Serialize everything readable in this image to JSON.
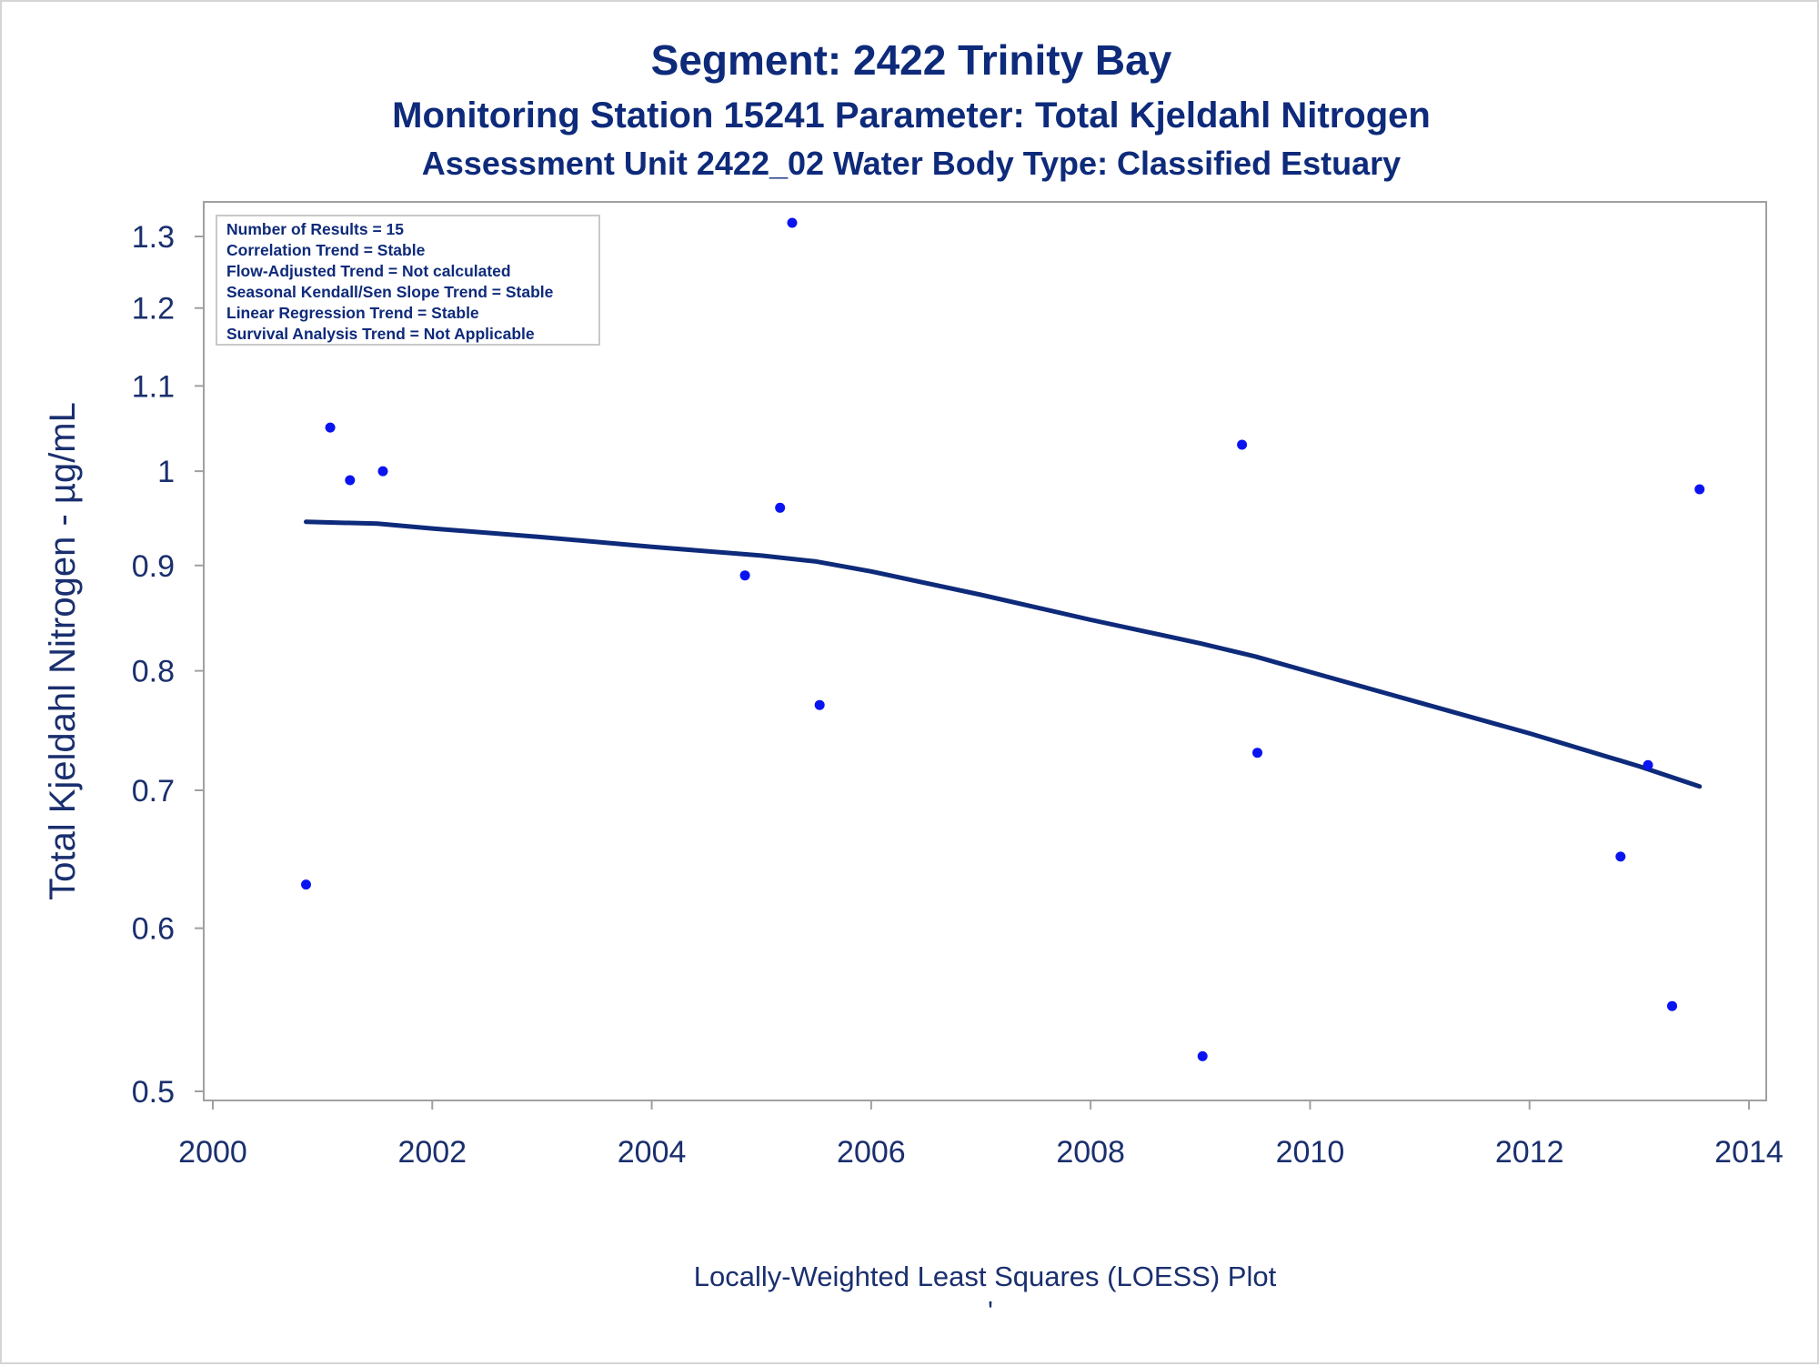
{
  "title": "Segment: 2422  Trinity Bay",
  "subtitle1": "Monitoring Station 15241 Parameter: Total Kjeldahl Nitrogen",
  "subtitle2": "Assessment Unit 2422_02   Water Body Type: Classified Estuary",
  "footnote": "Locally-Weighted Least Squares (LOESS) Plot",
  "footnote_mark": "'",
  "stats_box": [
    "Number of Results = 15",
    "Correlation Trend = Stable",
    "Flow-Adjusted Trend = Not calculated",
    "Seasonal Kendall/Sen Slope Trend = Stable",
    "Linear Regression Trend = Stable",
    "Survival Analysis Trend = Not Applicable"
  ],
  "colors": {
    "title": "#0e2a7a",
    "text": "#1a2f6e",
    "points": "#0a14f0",
    "loess_line": "#0e2a7a",
    "axis_frame": "#a0a0a0"
  },
  "chart_data": {
    "type": "scatter",
    "xlabel": "",
    "ylabel": "Total Kjeldahl Nitrogen -  µg/mL",
    "y_scale": "log",
    "xlim": [
      2000,
      2014
    ],
    "ylim": [
      0.49,
      1.33
    ],
    "x_ticks": [
      2000,
      2002,
      2004,
      2006,
      2008,
      2010,
      2012,
      2014
    ],
    "y_ticks": [
      0.5,
      0.6,
      0.7,
      0.8,
      0.9,
      1,
      1.1,
      1.2,
      1.3
    ],
    "grid": false,
    "legend": "none",
    "points": [
      {
        "x": 2000.85,
        "y": 0.63
      },
      {
        "x": 2001.07,
        "y": 1.05
      },
      {
        "x": 2001.25,
        "y": 0.99
      },
      {
        "x": 2001.55,
        "y": 1.0
      },
      {
        "x": 2004.85,
        "y": 0.89
      },
      {
        "x": 2005.17,
        "y": 0.96
      },
      {
        "x": 2005.28,
        "y": 1.32
      },
      {
        "x": 2005.53,
        "y": 0.77
      },
      {
        "x": 2009.02,
        "y": 0.52
      },
      {
        "x": 2009.38,
        "y": 1.03
      },
      {
        "x": 2009.52,
        "y": 0.73
      },
      {
        "x": 2012.83,
        "y": 0.65
      },
      {
        "x": 2013.08,
        "y": 0.72
      },
      {
        "x": 2013.3,
        "y": 0.55
      },
      {
        "x": 2013.55,
        "y": 0.98
      }
    ],
    "loess": {
      "name": "",
      "x": [
        2000.85,
        2001.5,
        2002.0,
        2003.0,
        2004.0,
        2005.0,
        2005.5,
        2006.0,
        2007.0,
        2008.0,
        2009.0,
        2009.5,
        2010.0,
        2011.0,
        2012.0,
        2013.0,
        2013.55
      ],
      "y": [
        0.945,
        0.943,
        0.938,
        0.929,
        0.919,
        0.91,
        0.904,
        0.894,
        0.871,
        0.847,
        0.825,
        0.813,
        0.799,
        0.772,
        0.746,
        0.719,
        0.703
      ]
    }
  }
}
